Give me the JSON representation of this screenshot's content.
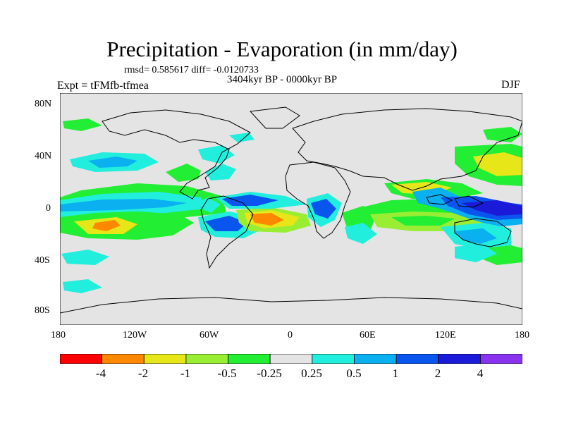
{
  "figure": {
    "title": "Precipitation - Evaporation (in mm/day)",
    "stats": "rmsd= 0.585617 diff= -0.0120733",
    "period": "3404kyr BP - 0000kyr BP",
    "experiment": "Expt = tFMfb-tfmea",
    "season": "DJF"
  },
  "axes": {
    "lat_ticks": [
      "80N",
      "40N",
      "0",
      "40S",
      "80S"
    ],
    "lon_ticks": [
      "180",
      "120W",
      "60W",
      "0",
      "60E",
      "120E",
      "180"
    ]
  },
  "colorbar": {
    "labels": [
      "-4",
      "-2",
      "-1",
      "-0.5",
      "-0.25",
      "0.25",
      "0.5",
      "1",
      "2",
      "4"
    ],
    "colors": [
      "#ff0000",
      "#ff8800",
      "#e6e619",
      "#99ee33",
      "#22ee33",
      "#e4e4e4",
      "#22eedd",
      "#0ab0f0",
      "#0a55ee",
      "#1a1ad8",
      "#8833ee"
    ]
  },
  "map": {
    "background": "#e4e4e4",
    "coastline_color": "#000000"
  }
}
